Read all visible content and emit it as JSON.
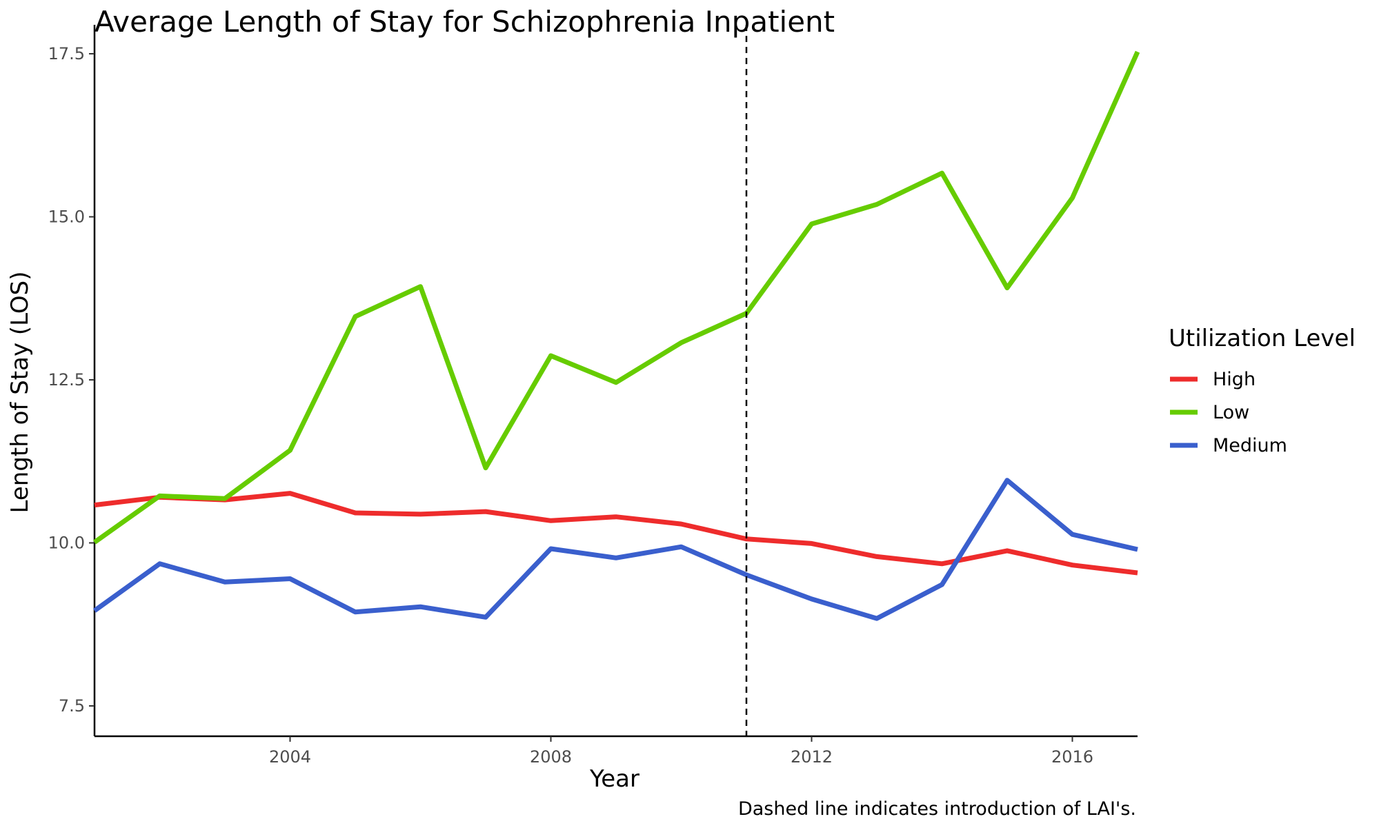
{
  "chart_data": {
    "type": "line",
    "title": "Average Length of Stay for Schizophrenia Inpatient",
    "xlabel": "Year",
    "ylabel": "Length of Stay (LOS)",
    "caption": "Dashed line indicates introduction of LAI's.",
    "xlim": [
      2001,
      2017
    ],
    "ylim": [
      7.0,
      17.5
    ],
    "x_ticks": [
      2004,
      2008,
      2012,
      2016
    ],
    "x_tick_labels": [
      "2004",
      "2008",
      "2012",
      "2016"
    ],
    "y_ticks": [
      7.5,
      10.0,
      12.5,
      15.0,
      17.5
    ],
    "y_tick_labels": [
      "7.5",
      "10.0",
      "12.5",
      "15.0",
      "17.5"
    ],
    "grid": false,
    "legend": {
      "title": "Utilization Level",
      "position": "right"
    },
    "reference_line": {
      "x": 2011,
      "style": "dashed"
    },
    "x": [
      2001,
      2002,
      2003,
      2004,
      2005,
      2006,
      2007,
      2008,
      2009,
      2010,
      2011,
      2012,
      2013,
      2014,
      2015,
      2016,
      2017
    ],
    "series": [
      {
        "name": "High",
        "color": "#ee2c2c",
        "values": [
          10.58,
          10.7,
          10.66,
          10.76,
          10.46,
          10.44,
          10.48,
          10.34,
          10.4,
          10.29,
          10.06,
          9.99,
          9.79,
          9.68,
          9.88,
          9.66,
          9.54
        ]
      },
      {
        "name": "Low",
        "color": "#66cc00",
        "values": [
          10.01,
          10.72,
          10.68,
          11.42,
          13.47,
          13.93,
          11.15,
          12.87,
          12.46,
          13.07,
          13.52,
          14.89,
          15.19,
          15.67,
          13.91,
          15.29,
          17.53
        ]
      },
      {
        "name": "Medium",
        "color": "#3a5fcd",
        "values": [
          8.96,
          9.68,
          9.4,
          9.45,
          8.94,
          9.02,
          8.86,
          9.91,
          9.77,
          9.94,
          9.51,
          9.14,
          8.84,
          9.36,
          10.96,
          10.13,
          9.9
        ]
      }
    ]
  }
}
